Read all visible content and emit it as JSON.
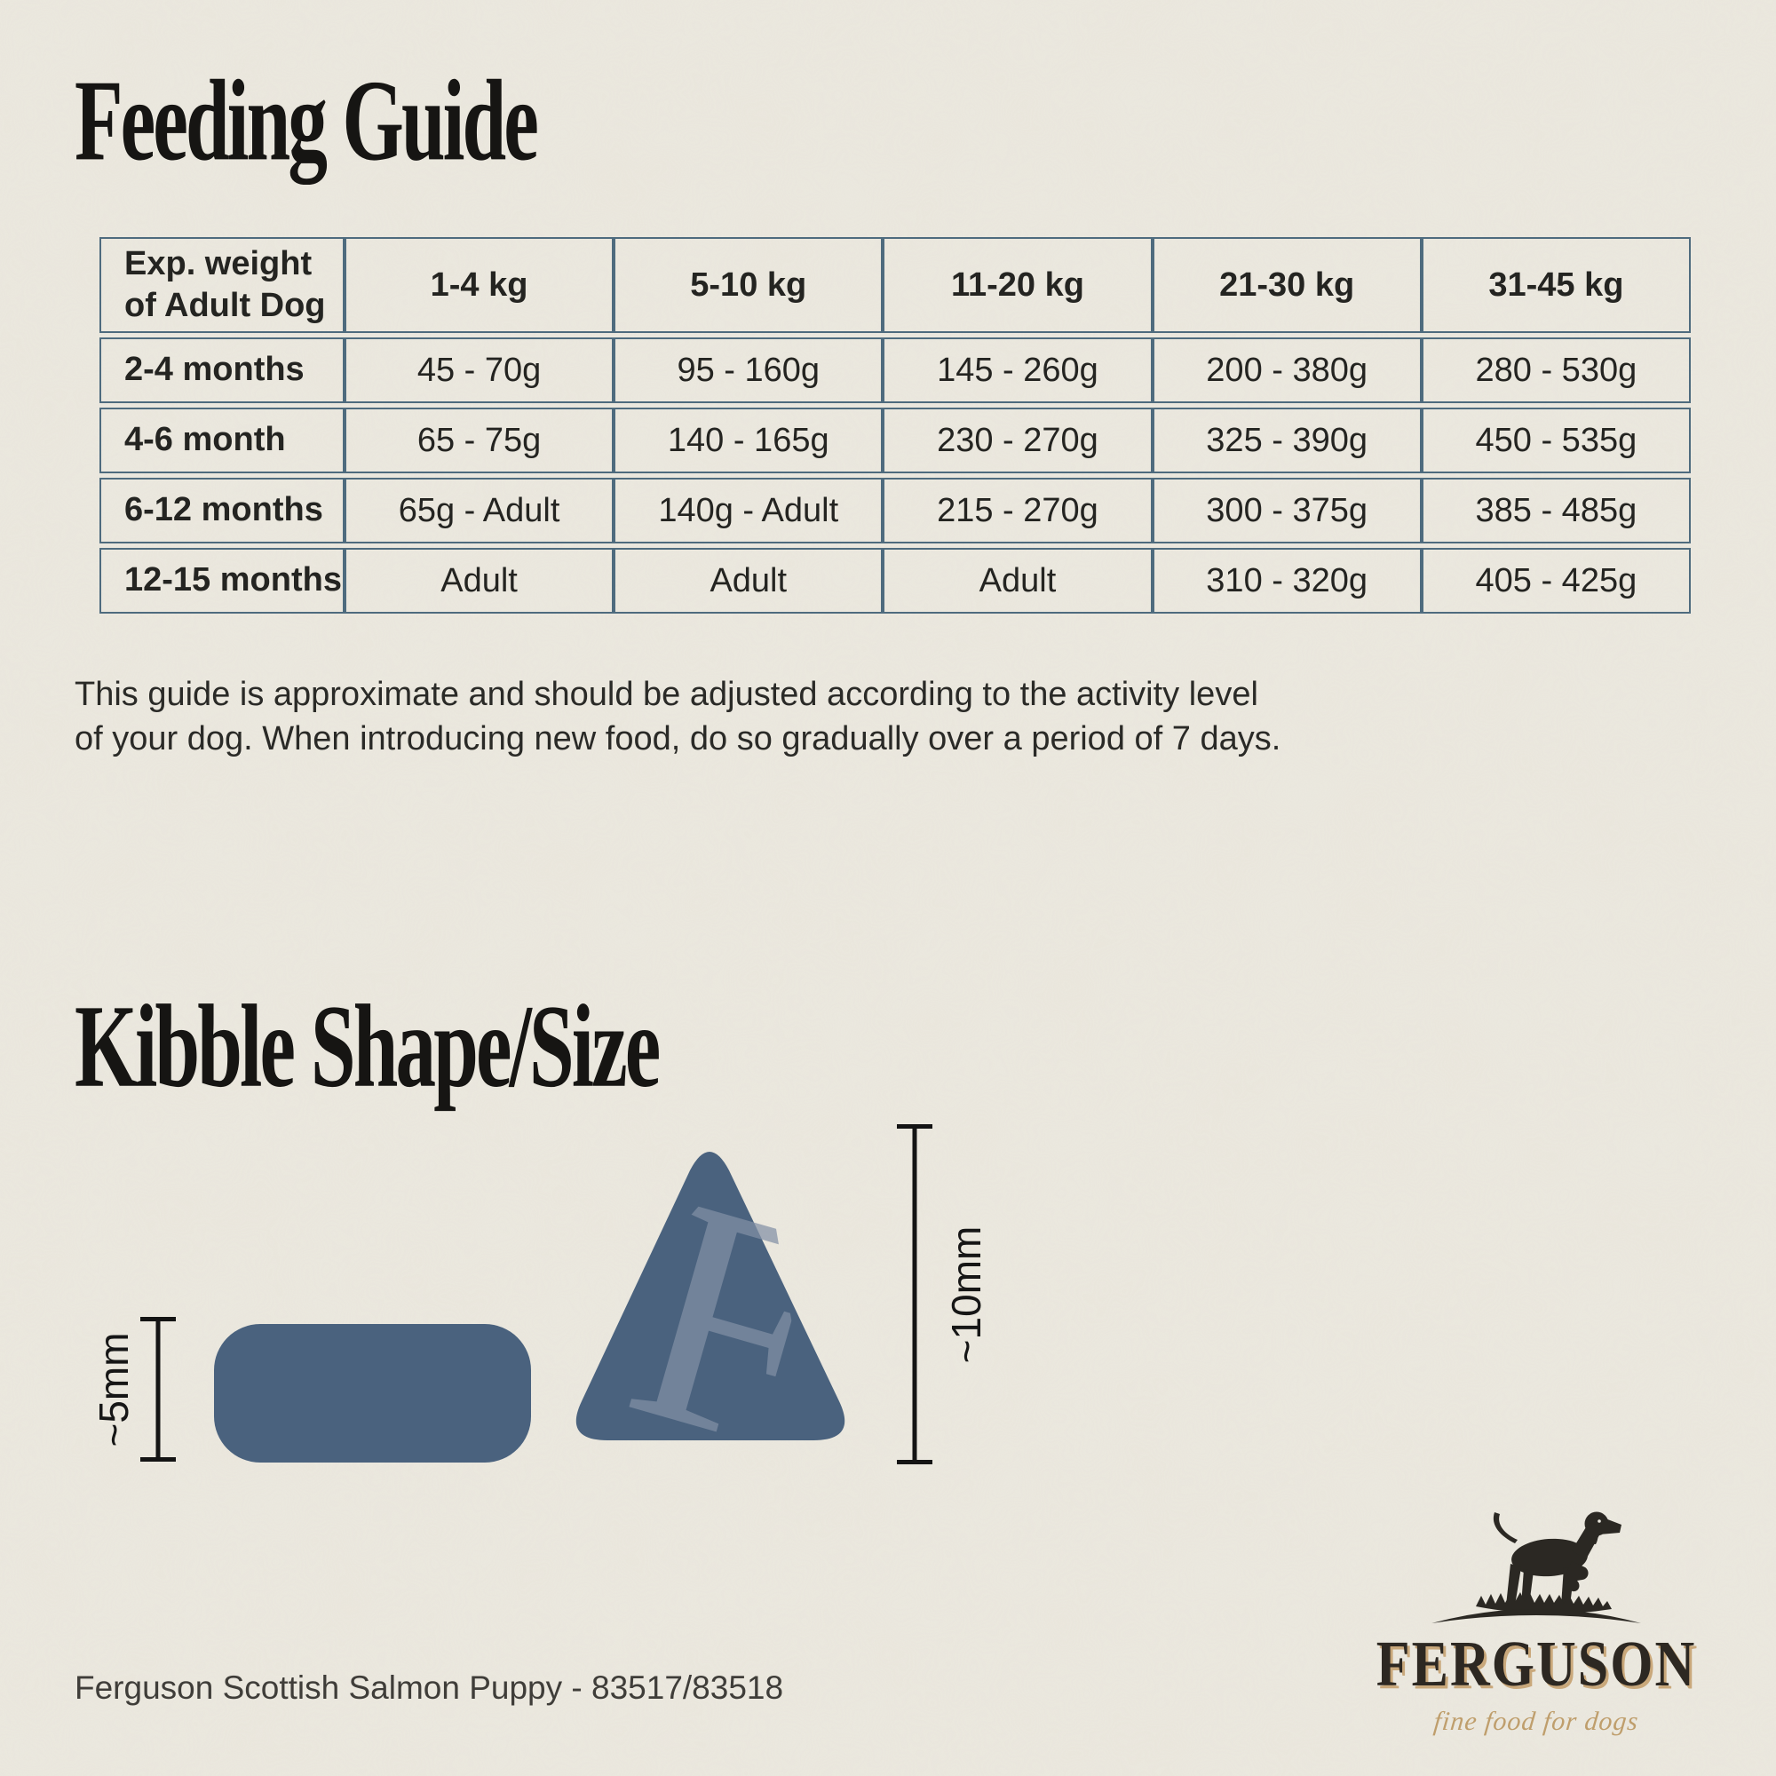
{
  "titles": {
    "feeding_guide": "Feeding Guide",
    "kibble": "Kibble Shape/Size"
  },
  "table": {
    "headers": [
      "Exp. weight\nof Adult Dog",
      "1-4 kg",
      "5-10 kg",
      "11-20 kg",
      "21-30 kg",
      "31-45 kg"
    ],
    "rows": [
      [
        "2-4 months",
        "45 - 70g",
        "95 - 160g",
        "145 - 260g",
        "200 - 380g",
        "280 - 530g"
      ],
      [
        "4-6 month",
        "65 - 75g",
        "140 - 165g",
        "230 - 270g",
        "325 - 390g",
        "450 - 535g"
      ],
      [
        "6-12 months",
        "65g - Adult",
        "140g - Adult",
        "215 - 270g",
        "300 - 375g",
        "385 - 485g"
      ],
      [
        "12-15 months",
        "Adult",
        "Adult",
        "Adult",
        "310 - 320g",
        "405 - 425g"
      ]
    ]
  },
  "note": "This guide is approximate and should be adjusted according to the activity level\nof your dog. When introducing new food, do so gradually over a period of 7 days.",
  "kibble": {
    "pill_label": "~5mm",
    "triangle_label": "~10mm",
    "watermark_letter": "F"
  },
  "logo": {
    "brand": "FERGUSON",
    "tagline": "fine food for dogs"
  },
  "footer": "Ferguson Scottish Salmon Puppy - 83517/83518",
  "colors": {
    "paper": "#ece9e0",
    "table_border": "#4e6b7e",
    "kibble_fill": "#4a627e",
    "kibble_watermark": "#8290a5",
    "gold": "#bf9e6c",
    "ink": "#2b2823"
  }
}
